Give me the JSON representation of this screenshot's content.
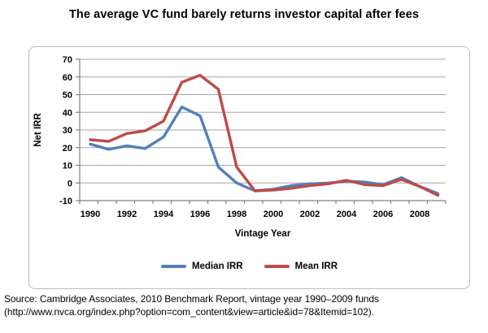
{
  "title": "The average VC fund barely returns investor capital after fees",
  "chart_data": {
    "type": "line",
    "x": [
      1990,
      1991,
      1992,
      1993,
      1994,
      1995,
      1996,
      1997,
      1998,
      1999,
      2000,
      2001,
      2002,
      2003,
      2004,
      2005,
      2006,
      2007,
      2008,
      2009
    ],
    "series": [
      {
        "name": "Median IRR",
        "color": "#4F81BD",
        "values": [
          22,
          19,
          21,
          19.5,
          26,
          43,
          38,
          9,
          0,
          -4.5,
          -3.5,
          -1.5,
          -0.5,
          0,
          1,
          0.5,
          -1,
          3,
          -2,
          -6
        ]
      },
      {
        "name": "Mean IRR",
        "color": "#BE4B48",
        "values": [
          24.5,
          23.5,
          28,
          29.5,
          35,
          57,
          61,
          53,
          9,
          -4.5,
          -4,
          -3,
          -1.5,
          -0.5,
          1.5,
          -1,
          -1.5,
          2,
          -2,
          -7
        ]
      }
    ],
    "xlabel": "Vintage Year",
    "ylabel": "Net IRR",
    "ylim": [
      -10,
      70
    ],
    "ytick_step": 10,
    "xtick_labels": [
      "1990",
      "1992",
      "1994",
      "1996",
      "1998",
      "2000",
      "2002",
      "2004",
      "2006",
      "2008"
    ],
    "grid": true,
    "legend_position": "bottom"
  },
  "source": {
    "line1": "Source: Cambridge Associates, 2010 Benchmark Report, vintage year 1990–2009 funds",
    "line2": "(http://www.nvca.org/index.php?option=com_content&view=article&id=78&Itemid=102)."
  },
  "colors": {
    "grid": "#A5A5A5",
    "axis": "#808080",
    "frame_border": "#BDBDBD",
    "text": "#000000"
  }
}
